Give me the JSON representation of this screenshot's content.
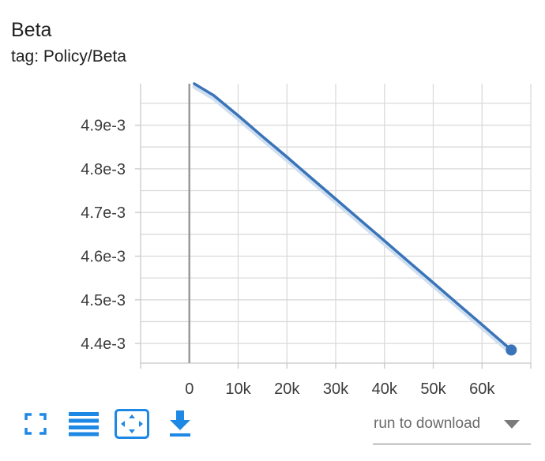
{
  "card": {
    "title": "Beta",
    "tag": "tag: Policy/Beta"
  },
  "chart_data": {
    "type": "line",
    "title": "Beta",
    "xlabel": "",
    "ylabel": "",
    "x_ticks": [
      0,
      10000,
      20000,
      30000,
      40000,
      50000,
      60000
    ],
    "x_tick_labels": [
      "0",
      "10k",
      "20k",
      "30k",
      "40k",
      "50k",
      "60k"
    ],
    "y_ticks": [
      0.0044,
      0.0045,
      0.0046,
      0.0047,
      0.0048,
      0.0049
    ],
    "y_tick_labels": [
      "4.4e-3",
      "4.5e-3",
      "4.6e-3",
      "4.7e-3",
      "4.8e-3",
      "4.9e-3"
    ],
    "xlim": [
      -10000,
      70000
    ],
    "ylim": [
      0.004355,
      0.004995
    ],
    "grid": true,
    "series": [
      {
        "x": [
          1000,
          5000,
          10000,
          15000,
          20000,
          25000,
          30000,
          35000,
          40000,
          45000,
          50000,
          55000,
          60000,
          66000
        ],
        "y": [
          0.004995,
          0.004968,
          0.004922,
          0.004874,
          0.004827,
          0.004779,
          0.004731,
          0.004683,
          0.004635,
          0.004587,
          0.004539,
          0.004491,
          0.004443,
          0.004385
        ],
        "color": "#3a74b8",
        "smoothed_shadow_color": "#cfdff0"
      }
    ]
  },
  "toolbar": {
    "buttons": [
      {
        "icon": "fullscreen-icon",
        "color": "#1e88e5"
      },
      {
        "icon": "list-icon",
        "color": "#1e88e5"
      },
      {
        "icon": "fit-domain-icon",
        "color": "#1e88e5"
      },
      {
        "icon": "download-icon",
        "color": "#1e88e5"
      }
    ]
  },
  "run_select": {
    "value": "run to download"
  }
}
